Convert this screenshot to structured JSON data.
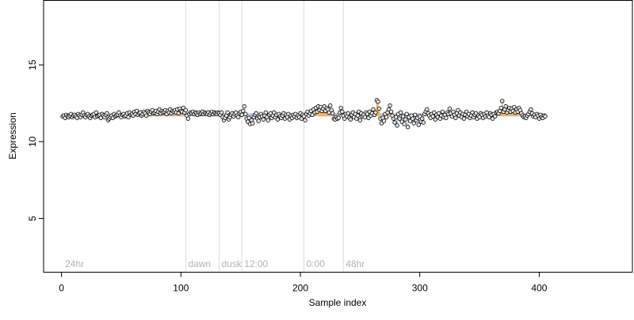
{
  "chart_data": {
    "type": "scatter",
    "xlabel": "Sample index",
    "ylabel": "Expression",
    "xlim": [
      -15,
      478
    ],
    "ylim": [
      1.5,
      19.2
    ],
    "x_ticks": [
      0,
      100,
      200,
      300,
      400
    ],
    "y_ticks": [
      5,
      10,
      15
    ],
    "point_fill": "#e8e8e8",
    "point_stroke": "#000000",
    "background_colors": {
      "grey": "#b0b0b0",
      "blue": "#9bbbe3",
      "orange": "#f5a43a"
    },
    "region_lines": [
      {
        "x": 104,
        "label": "dawn"
      },
      {
        "x": 132,
        "label": "dusk"
      },
      {
        "x": 151,
        "label": "12:00"
      },
      {
        "x": 203,
        "label": "0:00"
      },
      {
        "x": 236,
        "label": "48hr"
      }
    ],
    "region_labels": [
      {
        "x": 3,
        "text": "24hr"
      }
    ],
    "series": [
      {
        "values_y": [
          11.65,
          11.7,
          11.55,
          11.75,
          11.65,
          11.6,
          11.7,
          11.8,
          11.6,
          11.7,
          11.75,
          11.65,
          11.55,
          11.8,
          11.7,
          11.6,
          11.75,
          11.9,
          11.7,
          11.6,
          11.75,
          11.8,
          11.65,
          11.55,
          11.7,
          11.75,
          11.8,
          11.6,
          11.9,
          11.65,
          11.7,
          11.75,
          11.55,
          11.8,
          11.7,
          11.6,
          11.75,
          11.85,
          11.4,
          11.5,
          11.6,
          11.7,
          11.55,
          11.8,
          11.65,
          11.7,
          11.75,
          11.9,
          11.7,
          11.6,
          11.75,
          11.8,
          11.65,
          11.7,
          11.85,
          11.6,
          11.9,
          11.75,
          11.8,
          11.7,
          11.95,
          11.8,
          12.0,
          11.75,
          11.85,
          11.9,
          11.7,
          11.8,
          11.95,
          11.85,
          11.7,
          12.0,
          11.9,
          11.8,
          11.95,
          12.05,
          11.85,
          11.9,
          12.0,
          11.8,
          11.95,
          12.1,
          11.85,
          12.0,
          11.9,
          11.95,
          12.05,
          11.8,
          12.0,
          11.9,
          12.1,
          11.85,
          12.0,
          11.95,
          12.05,
          11.9,
          12.1,
          11.85,
          12.15,
          12.0,
          11.95,
          12.2,
          11.9,
          12.05,
          11.7,
          11.5,
          11.8,
          11.9,
          11.85,
          11.95,
          11.8,
          11.9,
          11.85,
          11.75,
          11.9,
          11.8,
          11.85,
          11.95,
          11.8,
          11.9,
          11.85,
          11.8,
          11.9,
          11.75,
          11.85,
          11.95,
          11.8,
          11.9,
          11.85,
          11.8,
          11.9,
          11.85,
          11.75,
          11.9,
          11.6,
          11.4,
          11.55,
          11.7,
          11.9,
          11.45,
          11.6,
          11.75,
          11.85,
          11.65,
          11.8,
          11.9,
          11.7,
          11.6,
          11.85,
          11.95,
          11.75,
          12.0,
          12.3,
          11.8,
          11.5,
          11.3,
          11.55,
          11.15,
          11.4,
          11.2,
          11.6,
          11.75,
          11.85,
          11.5,
          11.35,
          11.6,
          11.8,
          11.65,
          11.45,
          11.7,
          11.9,
          11.6,
          11.4,
          11.75,
          11.85,
          11.55,
          11.7,
          11.9,
          11.6,
          11.75,
          11.45,
          11.8,
          11.65,
          11.55,
          11.7,
          11.85,
          11.5,
          11.75,
          11.6,
          11.8,
          11.45,
          11.7,
          11.55,
          11.75,
          11.65,
          11.8,
          11.55,
          11.7,
          11.6,
          11.85,
          11.5,
          11.75,
          11.65,
          11.4,
          11.8,
          11.95,
          11.7,
          11.85,
          12.0,
          11.75,
          12.1,
          11.9,
          12.2,
          11.95,
          12.3,
          12.05,
          12.25,
          12.0,
          12.15,
          12.3,
          12.0,
          12.2,
          12.1,
          11.9,
          12.35,
          12.05,
          11.85,
          11.5,
          11.45,
          11.6,
          11.5,
          11.55,
          11.9,
          12.2,
          11.95,
          11.7,
          11.5,
          11.8,
          11.65,
          11.85,
          11.55,
          11.45,
          11.75,
          11.9,
          11.6,
          11.8,
          11.5,
          11.7,
          11.95,
          11.4,
          11.85,
          11.65,
          11.75,
          11.6,
          11.9,
          11.8,
          11.55,
          11.95,
          11.7,
          11.85,
          12.1,
          11.75,
          11.9,
          12.7,
          12.6,
          12.15,
          11.5,
          11.2,
          11.55,
          11.35,
          11.8,
          11.6,
          11.9,
          12.1,
          12.35,
          11.95,
          11.7,
          11.5,
          11.25,
          11.6,
          11.05,
          11.8,
          11.5,
          11.9,
          11.3,
          11.65,
          11.15,
          11.45,
          11.8,
          10.95,
          11.6,
          11.35,
          11.7,
          11.5,
          11.2,
          11.75,
          11.4,
          11.55,
          11.1,
          11.65,
          11.3,
          11.5,
          11.25,
          11.8,
          11.95,
          12.1,
          11.85,
          11.7,
          11.55,
          11.8,
          11.65,
          11.9,
          11.45,
          11.75,
          11.6,
          11.85,
          11.5,
          11.7,
          11.95,
          11.6,
          11.75,
          11.55,
          11.9,
          11.8,
          12.15,
          11.85,
          11.65,
          11.95,
          11.75,
          11.55,
          11.85,
          12.05,
          11.7,
          11.9,
          11.6,
          11.8,
          11.5,
          11.75,
          11.95,
          11.65,
          11.8,
          11.55,
          11.7,
          11.9,
          11.6,
          11.75,
          11.85,
          11.5,
          11.7,
          11.6,
          11.85,
          11.75,
          11.55,
          11.8,
          11.65,
          11.9,
          11.7,
          11.6,
          11.85,
          11.75,
          11.5,
          11.8,
          11.65,
          11.9,
          11.95,
          11.85,
          12.0,
          12.2,
          12.65,
          11.95,
          12.1,
          12.3,
          11.9,
          12.05,
          12.2,
          11.95,
          12.15,
          12.0,
          12.25,
          11.9,
          12.1,
          11.95,
          12.2,
          12.05,
          11.85,
          11.7,
          11.6,
          11.65,
          11.55,
          11.7,
          11.8,
          11.95,
          12.1,
          11.85,
          11.65,
          11.75,
          11.6,
          11.8,
          11.7,
          11.5,
          11.75,
          11.6,
          11.55,
          11.7,
          11.65
        ]
      }
    ]
  }
}
